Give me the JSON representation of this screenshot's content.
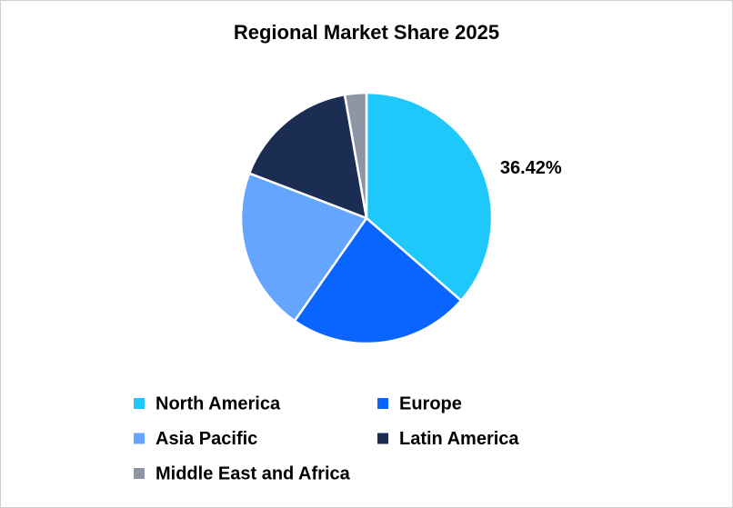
{
  "chart_data": {
    "type": "pie",
    "title": "Regional Market Share 2025",
    "categories": [
      "North America",
      "Europe",
      "Asia Pacific",
      "Latin America",
      "Middle East and Africa"
    ],
    "values": [
      36.42,
      23.3,
      21.1,
      16.4,
      2.78
    ],
    "value_labels": [
      "36.42%",
      null,
      null,
      null,
      null
    ],
    "colors": [
      "#1ec8fa",
      "#0a64ff",
      "#64a5ff",
      "#1c2d54",
      "#8e96a5"
    ]
  }
}
